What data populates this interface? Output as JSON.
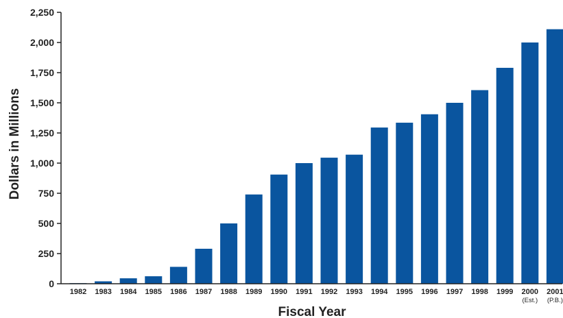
{
  "chart_data": {
    "type": "bar",
    "categories": [
      "1982",
      "1983",
      "1984",
      "1985",
      "1986",
      "1987",
      "1988",
      "1989",
      "1990",
      "1991",
      "1992",
      "1993",
      "1994",
      "1995",
      "1996",
      "1997",
      "1998",
      "1999",
      "2000",
      "2001"
    ],
    "category_sublabels": [
      "",
      "",
      "",
      "",
      "",
      "",
      "",
      "",
      "",
      "",
      "",
      "",
      "",
      "",
      "",
      "",
      "",
      "",
      "(Est.)",
      "(P.B.)"
    ],
    "values": [
      5,
      20,
      45,
      62,
      140,
      290,
      500,
      740,
      905,
      1000,
      1045,
      1070,
      1295,
      1335,
      1405,
      1500,
      1605,
      1790,
      2000,
      2110
    ],
    "xlabel": "Fiscal Year",
    "ylabel": "Dollars in Millions",
    "ylim": [
      0,
      2250
    ],
    "yticks": [
      0,
      250,
      500,
      750,
      1000,
      1250,
      1500,
      1750,
      2000,
      2250
    ],
    "ytick_labels": [
      "0",
      "250",
      "500",
      "750",
      "1,000",
      "1,250",
      "1,500",
      "1,750",
      "2,000",
      "2,250"
    ],
    "bar_color": "#0a559f",
    "grid": false,
    "legend": "none"
  }
}
